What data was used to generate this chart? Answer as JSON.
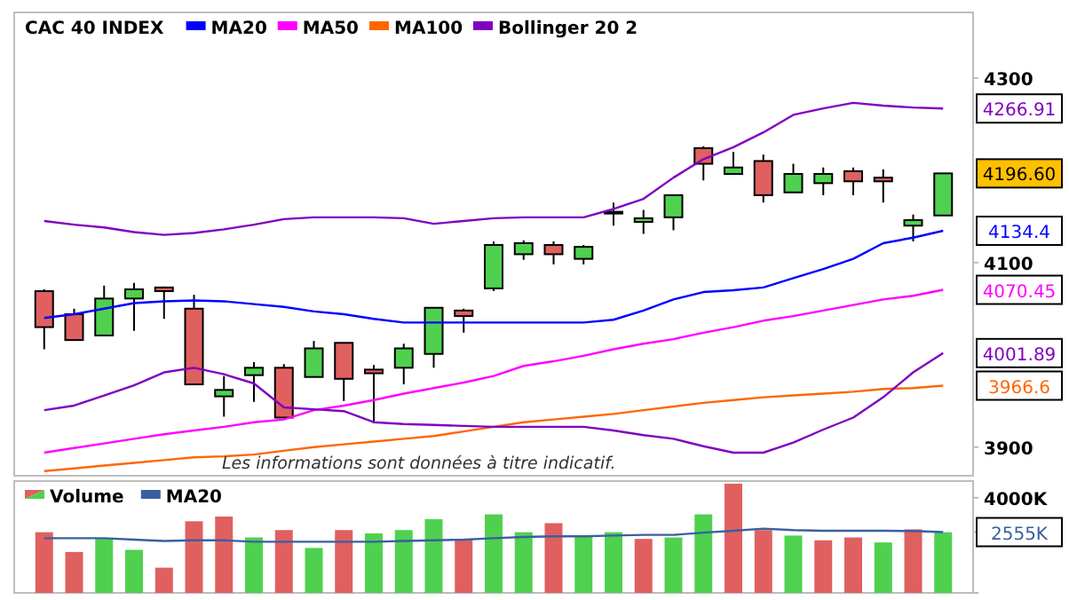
{
  "chart_data": [
    {
      "type": "candlestick",
      "title": "CAC 40 INDEX",
      "categories": [
        null,
        null,
        null,
        null,
        null,
        null,
        null,
        null,
        null,
        null,
        null,
        null,
        null,
        null,
        null,
        null,
        null,
        null,
        null,
        null,
        null,
        null,
        null,
        null,
        null,
        null,
        null,
        null,
        null,
        null,
        null
      ],
      "ohlc": [
        [
          4069,
          4071,
          4006,
          4030
        ],
        [
          4044,
          4050,
          4016,
          4016
        ],
        [
          4021,
          4075,
          4021,
          4061
        ],
        [
          4061,
          4078,
          4026,
          4071
        ],
        [
          4073,
          4074,
          4039,
          4069
        ],
        [
          4050,
          4065,
          3968,
          3968
        ],
        [
          3955,
          3977,
          3933,
          3962
        ],
        [
          3978,
          3992,
          3949,
          3986
        ],
        [
          3986,
          3990,
          3932,
          3932
        ],
        [
          3976,
          4015,
          3976,
          4007
        ],
        [
          4013,
          4013,
          3950,
          3974
        ],
        [
          3984,
          3989,
          3926,
          3980
        ],
        [
          3986,
          4012,
          3968,
          4007
        ],
        [
          4001,
          4051,
          3986,
          4051
        ],
        [
          4048,
          4050,
          4024,
          4042
        ],
        [
          4072,
          4123,
          4069,
          4119
        ],
        [
          4109,
          4124,
          4103,
          4121
        ],
        [
          4119,
          4123,
          4098,
          4109
        ],
        [
          4104,
          4119,
          4098,
          4117
        ],
        [
          4155,
          4165,
          4140,
          4155
        ],
        [
          4144,
          4157,
          4131,
          4148
        ],
        [
          4149,
          4173,
          4135,
          4173
        ],
        [
          4224,
          4226,
          4189,
          4207
        ],
        [
          4196,
          4220,
          4196,
          4203
        ],
        [
          4210,
          4217,
          4165,
          4173
        ],
        [
          4176,
          4207,
          4176,
          4196
        ],
        [
          4186,
          4203,
          4173,
          4196
        ],
        [
          4199,
          4203,
          4173,
          4188
        ],
        [
          4192,
          4201,
          4165,
          4188
        ],
        [
          4140,
          4152,
          4123,
          4146
        ],
        [
          4151,
          4196.6,
          4151,
          4196.6
        ]
      ],
      "colors": [
        "#e06060",
        "#e06060",
        "#4fd14f",
        "#4fd14f",
        "#e06060",
        "#e06060",
        "#4fd14f",
        "#4fd14f",
        "#e06060",
        "#4fd14f",
        "#e06060",
        "#e06060",
        "#4fd14f",
        "#4fd14f",
        "#e06060",
        "#4fd14f",
        "#4fd14f",
        "#e06060",
        "#4fd14f",
        "#000000",
        "#4fd14f",
        "#4fd14f",
        "#e06060",
        "#4fd14f",
        "#e06060",
        "#4fd14f",
        "#4fd14f",
        "#e06060",
        "#e06060",
        "#4fd14f",
        "#4fd14f"
      ],
      "series": [
        {
          "name": "MA20",
          "type": "line",
          "color": "#0000ff",
          "values": [
            4040,
            4044,
            4050,
            4056,
            4058,
            4059,
            4058,
            4055,
            4052,
            4047,
            4044,
            4039,
            4035,
            4035,
            4035,
            4035,
            4035,
            4035,
            4035,
            4038,
            4048,
            4060,
            4068,
            4070,
            4073,
            4083,
            4093,
            4104,
            4121,
            4127,
            4134.4
          ]
        },
        {
          "name": "MA50",
          "type": "line",
          "color": "#ff00ff",
          "values": [
            3894,
            3899,
            3904,
            3909,
            3914,
            3918,
            3922,
            3927,
            3930,
            3940,
            3945,
            3951,
            3958,
            3964,
            3970,
            3977,
            3988,
            3993,
            3999,
            4006,
            4012,
            4017,
            4024,
            4030,
            4037,
            4042,
            4048,
            4054,
            4060,
            4064,
            4070.45
          ]
        },
        {
          "name": "MA100",
          "type": "line",
          "color": "#ff6600",
          "values": [
            3874,
            3877,
            3880,
            3883,
            3886,
            3889,
            3890,
            3892,
            3896,
            3900,
            3903,
            3906,
            3909,
            3912,
            3917,
            3922,
            3927,
            3930,
            3933,
            3936,
            3940,
            3944,
            3948,
            3951,
            3954,
            3956,
            3958,
            3960,
            3963,
            3964,
            3966.6
          ]
        },
        {
          "name": "Bollinger 20 2",
          "type": "line",
          "color": "#8000c0",
          "values": [
            4145,
            4141,
            4138,
            4133,
            4130,
            4132,
            4136,
            4141,
            4147,
            4149,
            4149,
            4149,
            4148,
            4142,
            4145,
            4148,
            4149,
            4149,
            4149,
            4158,
            4169,
            4192,
            4212,
            4225,
            4241,
            4260,
            4267,
            4273,
            4270,
            4268,
            4266.91
          ]
        },
        {
          "type": "line",
          "color": "#8000c0",
          "values": [
            3940,
            3945,
            3956,
            3967,
            3981,
            3986,
            3979,
            3969,
            3943,
            3941,
            3939,
            3927,
            3925,
            3924,
            3923,
            3922,
            3922,
            3922,
            3922,
            3918,
            3913,
            3909,
            3901,
            3894,
            3894,
            3905,
            3919,
            3932,
            3954,
            3981,
            4001.89
          ]
        }
      ],
      "ylim": [
        3869,
        4371
      ],
      "yticks": [
        3900,
        4100,
        4300
      ],
      "y2lim": [
        3869,
        4371
      ],
      "y2ticks": [
        {
          "value": 4266.91,
          "label": "4266.91"
        },
        {
          "value": 4196.6,
          "label": "4196.60"
        },
        {
          "value": 4134.4,
          "label": "4134.4"
        },
        {
          "value": 4070.45,
          "label": "4070.45"
        },
        {
          "value": 4001.89,
          "label": "4001.89"
        },
        {
          "value": 3966.6,
          "label": "3966.6"
        }
      ],
      "legend": "top left",
      "annotations": [
        "Les informations sont données à titre indicatif."
      ]
    },
    {
      "type": "bar",
      "categories": [
        null,
        null,
        null,
        null,
        null,
        null,
        null,
        null,
        null,
        null,
        null,
        null,
        null,
        null,
        null,
        null,
        null,
        null,
        null,
        null,
        null,
        null,
        null,
        null,
        null,
        null,
        null,
        null,
        null,
        null,
        null
      ],
      "series": [
        {
          "name": "Volume",
          "type": "bar",
          "values": [
            2550,
            1720,
            2300,
            1810,
            1060,
            3010,
            3210,
            2330,
            2640,
            1890,
            2640,
            2500,
            2640,
            3100,
            2240,
            3300,
            2550,
            2930,
            2350,
            2550,
            2270,
            2330,
            3300,
            4590,
            2640,
            2410,
            2210,
            2330,
            2120,
            2670,
            2550
          ],
          "colors": [
            "#e06060",
            "#e06060",
            "#4fd14f",
            "#4fd14f",
            "#e06060",
            "#e06060",
            "#e06060",
            "#4fd14f",
            "#e06060",
            "#4fd14f",
            "#e06060",
            "#4fd14f",
            "#4fd14f",
            "#4fd14f",
            "#e06060",
            "#4fd14f",
            "#4fd14f",
            "#e06060",
            "#4fd14f",
            "#4fd14f",
            "#e06060",
            "#4fd14f",
            "#4fd14f",
            "#e06060",
            "#e06060",
            "#4fd14f",
            "#e06060",
            "#e06060",
            "#4fd14f",
            "#e06060",
            "#4fd14f"
          ]
        },
        {
          "name": "MA20",
          "type": "line",
          "color": "#3a5fa0",
          "values": [
            2300,
            2300,
            2300,
            2240,
            2180,
            2210,
            2210,
            2150,
            2150,
            2150,
            2150,
            2150,
            2180,
            2210,
            2240,
            2300,
            2350,
            2380,
            2380,
            2410,
            2440,
            2440,
            2530,
            2610,
            2700,
            2640,
            2610,
            2610,
            2610,
            2600,
            2555
          ]
        }
      ],
      "ylim": [
        0,
        4700
      ],
      "yticks": [
        {
          "value": 0,
          "label": null
        },
        {
          "value": 2555,
          "label": "2555K"
        },
        {
          "value": 4000,
          "label": "4000K"
        }
      ],
      "legend": "top left"
    }
  ]
}
